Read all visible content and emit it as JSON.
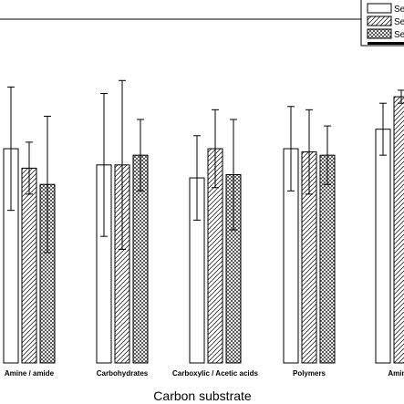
{
  "chart_data": {
    "type": "bar",
    "xlabel": "Carbon substrate",
    "ylabel": "",
    "ylim": [
      0,
      100
    ],
    "grid": false,
    "legend_position": "top-right",
    "categories": [
      "Amine / amide",
      "Carbohydrates",
      "Carboxylic / Acetic acids",
      "Polymers",
      "Aminoa"
    ],
    "series": [
      {
        "name": "Se",
        "fill": "plain",
        "values": [
          66,
          61,
          57,
          66,
          72
        ],
        "error": [
          19,
          22,
          13,
          13,
          8
        ]
      },
      {
        "name": "Se",
        "fill": "diagonal",
        "values": [
          60,
          61,
          66,
          65,
          82
        ],
        "error": [
          8,
          26,
          12,
          13,
          2
        ]
      },
      {
        "name": "Se",
        "fill": "crosshatch",
        "values": [
          55,
          64,
          58,
          64,
          0
        ],
        "error": [
          21,
          11,
          17,
          9,
          0
        ]
      }
    ]
  },
  "colors": {
    "bar_stroke": "#000000",
    "background": "#ffffff",
    "legend_bar": "#000000"
  }
}
